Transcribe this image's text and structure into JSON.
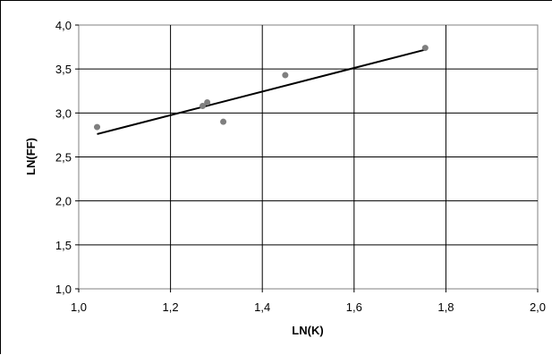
{
  "chart_data": {
    "type": "scatter",
    "title": "",
    "xlabel": "LN(K)",
    "ylabel": "LN(FF)",
    "xlim": [
      1.0,
      2.0
    ],
    "ylim": [
      1.0,
      4.0
    ],
    "x_ticks": [
      "1,0",
      "1,2",
      "1,4",
      "1,6",
      "1,8",
      "2,0"
    ],
    "y_ticks": [
      "1,0",
      "1,5",
      "2,0",
      "2,5",
      "3,0",
      "3,5",
      "4,0"
    ],
    "grid": true,
    "legend": "none",
    "points": [
      {
        "x": 1.04,
        "y": 2.84
      },
      {
        "x": 1.27,
        "y": 3.08
      },
      {
        "x": 1.28,
        "y": 3.12
      },
      {
        "x": 1.315,
        "y": 2.9
      },
      {
        "x": 1.45,
        "y": 3.43
      },
      {
        "x": 1.755,
        "y": 3.74
      }
    ],
    "trendline": {
      "x": [
        1.04,
        1.755
      ],
      "y": [
        2.76,
        3.72
      ]
    },
    "colors": {
      "points": "#7f7f7f",
      "trendline": "#000000",
      "grid": "#000000"
    }
  }
}
